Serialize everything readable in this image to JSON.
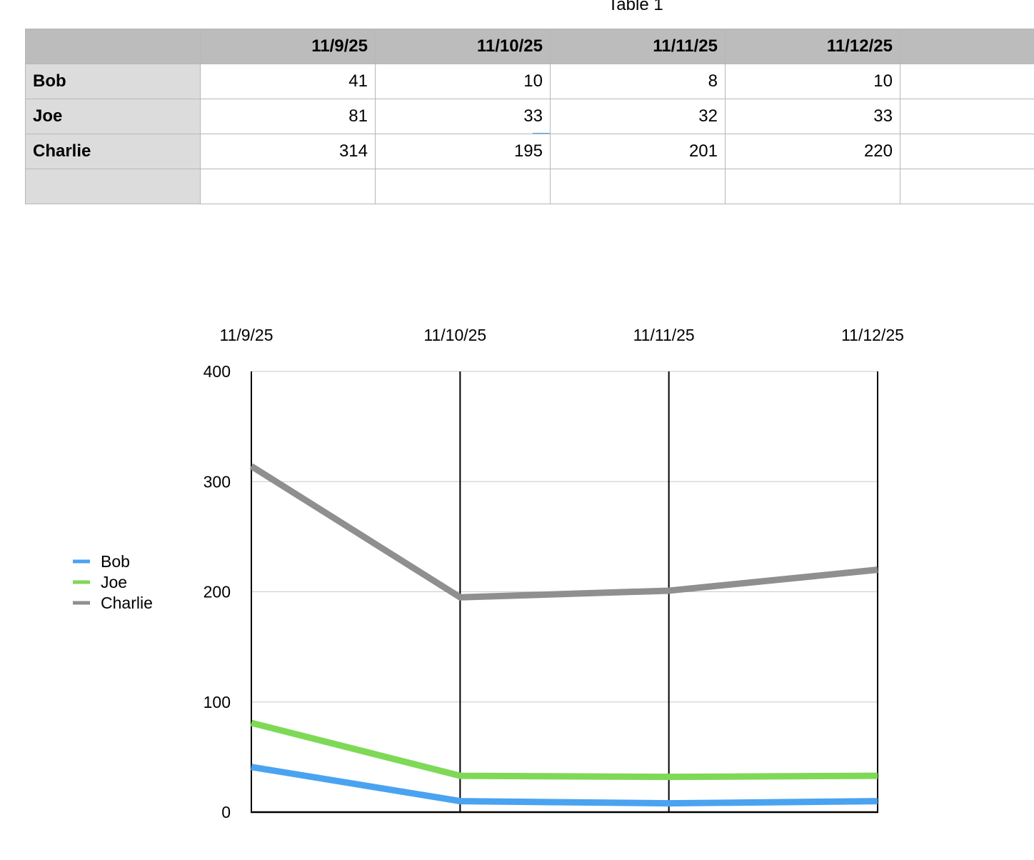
{
  "table": {
    "title": "Table 1",
    "header": [
      "",
      "11/9/25",
      "11/10/25",
      "11/11/25",
      "11/12/25",
      ""
    ],
    "rows": [
      {
        "name": "Bob",
        "cells": [
          "41",
          "10",
          "8",
          "10",
          ""
        ]
      },
      {
        "name": "Joe",
        "cells": [
          "81",
          "33",
          "32",
          "33",
          ""
        ]
      },
      {
        "name": "Charlie",
        "cells": [
          "314",
          "195",
          "201",
          "220",
          ""
        ]
      },
      {
        "name": "",
        "cells": [
          "",
          "",
          "",
          "",
          ""
        ]
      }
    ]
  },
  "chart_data": {
    "type": "line",
    "title": "",
    "xlabel": "",
    "ylabel": "",
    "x": [
      "11/9/25",
      "11/10/25",
      "11/11/25",
      "11/12/25"
    ],
    "ylim": [
      0,
      400
    ],
    "yticks": [
      0,
      100,
      200,
      300,
      400
    ],
    "grid": true,
    "legend_position": "left",
    "series": [
      {
        "name": "Bob",
        "color": "#4aa3f0",
        "values": [
          41,
          10,
          8,
          10
        ]
      },
      {
        "name": "Joe",
        "color": "#7ed957",
        "values": [
          81,
          33,
          32,
          33
        ]
      },
      {
        "name": "Charlie",
        "color": "#8f8f8f",
        "values": [
          314,
          195,
          201,
          220
        ]
      }
    ]
  }
}
